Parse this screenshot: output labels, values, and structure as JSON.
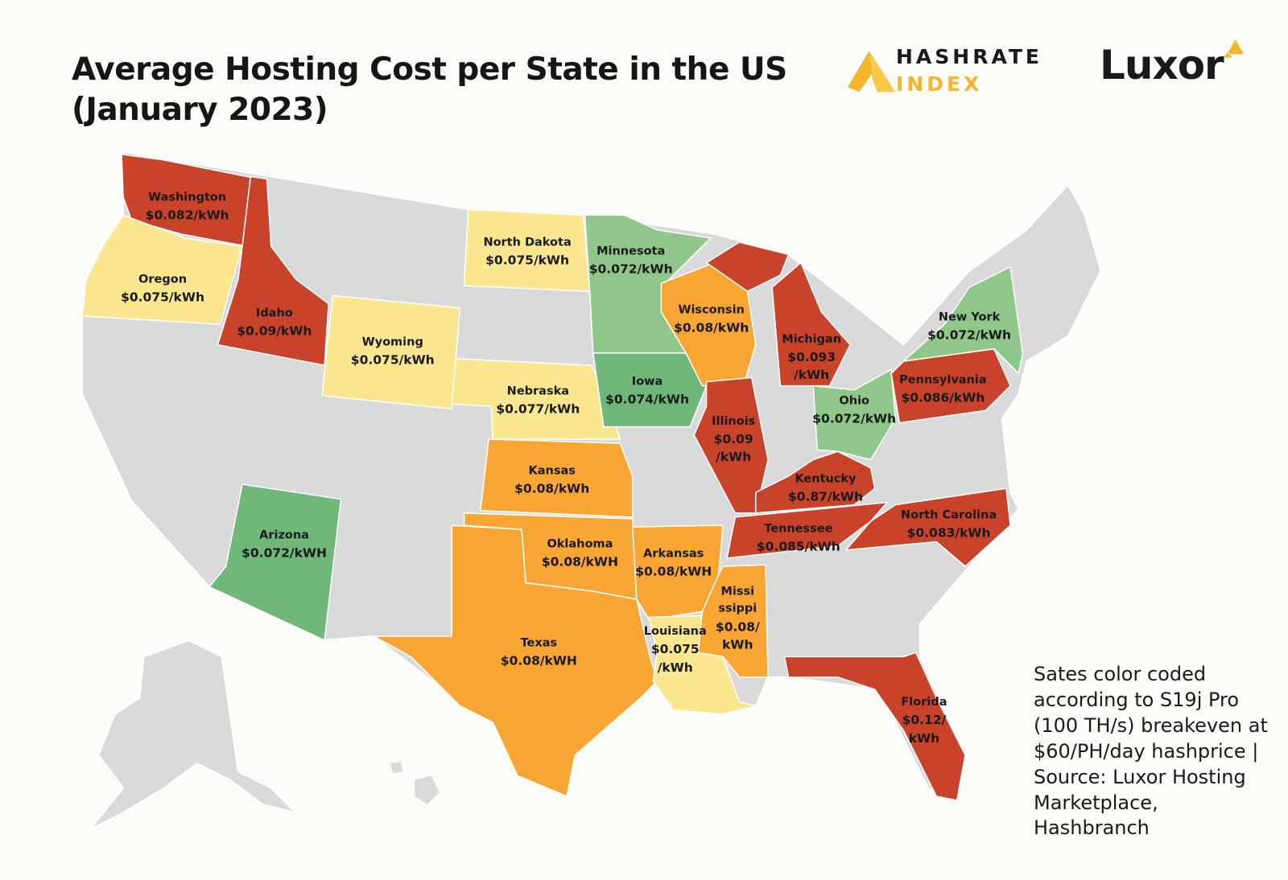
{
  "header": {
    "title": "Average Hosting Cost per State in the US\n(January 2023)",
    "logo_hashrate": "HASHRATE",
    "logo_index": "INDEX",
    "logo_luxor": "Luxor"
  },
  "note": "Sates color coded\naccording to S19j Pro\n(100 TH/s) breakeven at\n$60/PH/day hashprice |\nSource: Luxor Hosting\nMarketplace,\nHashbranch",
  "states": [
    {
      "name": "Washington",
      "price": "$0.082/kWh",
      "color": "#c9432a"
    },
    {
      "name": "Oregon",
      "price": "$0.075/kWh",
      "color": "#f9e68f"
    },
    {
      "name": "Idaho",
      "price": "$0.09/kWh",
      "color": "#c9432a"
    },
    {
      "name": "Wyoming",
      "price": "$0.075/kWh",
      "color": "#f9e68f"
    },
    {
      "name": "North Dakota",
      "price": "$0.075/kWh",
      "color": "#f9e68f"
    },
    {
      "name": "Nebraska",
      "price": "$0.077/kWh",
      "color": "#f9e68f"
    },
    {
      "name": "Minnesota",
      "price": "$0.072/kWh",
      "color": "#8fc78a"
    },
    {
      "name": "Iowa",
      "price": "$0.074/kWh",
      "color": "#6fb87a"
    },
    {
      "name": "Wisconsin",
      "price": "$0.08/kWh",
      "color": "#f8a534"
    },
    {
      "name": "Michigan",
      "price": "$0.093\n/kWh",
      "color": "#c9432a"
    },
    {
      "name": "Illinois",
      "price": "$0.09\n/kWh",
      "color": "#c9432a"
    },
    {
      "name": "Ohio",
      "price": "$0.072/kWh",
      "color": "#8fc78a"
    },
    {
      "name": "Pennsylvania",
      "price": "$0.086/kWh",
      "color": "#c9432a"
    },
    {
      "name": "New York",
      "price": "$0.072/kWh",
      "color": "#8fc78a"
    },
    {
      "name": "Kentucky",
      "price": "$0.87/kWh",
      "color": "#c9432a"
    },
    {
      "name": "Tennessee",
      "price": "$0.085/kWh",
      "color": "#c9432a"
    },
    {
      "name": "North Carolina",
      "price": "$0.083/kWh",
      "color": "#c9432a"
    },
    {
      "name": "Florida",
      "price": "$0.12/\nkWh",
      "color": "#c9432a"
    },
    {
      "name": "Kansas",
      "price": "$0.08/kWh",
      "color": "#f8a534"
    },
    {
      "name": "Oklahoma",
      "price": "$0.08/kWH",
      "color": "#f8a534"
    },
    {
      "name": "Texas",
      "price": "$0.08/kWH",
      "color": "#f8a534"
    },
    {
      "name": "Arkansas",
      "price": "$0.08/kWH",
      "color": "#f8a534"
    },
    {
      "name": "Louisiana",
      "price": "$0.075\n/kWh",
      "color": "#f9e68f"
    },
    {
      "name": "Missi\nssippi",
      "price": "$0.08/\nkWh",
      "color": "#f8a534"
    },
    {
      "name": "Arizona",
      "price": "$0.072/kWH",
      "color": "#6fb87a"
    }
  ]
}
